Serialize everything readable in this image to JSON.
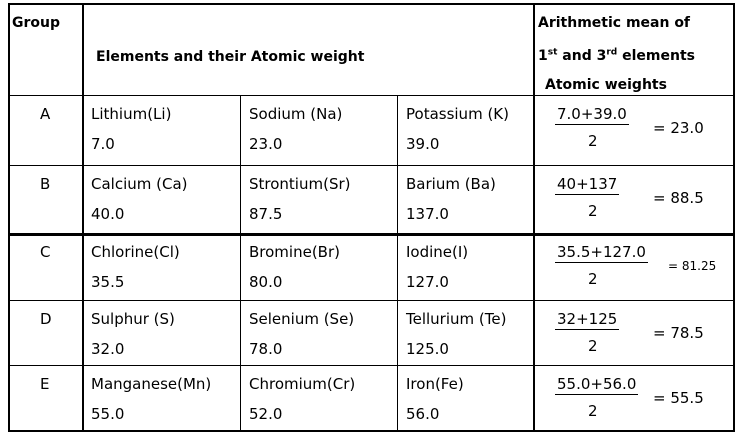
{
  "header": {
    "group": "Group",
    "elements": "Elements and their Atomic weight",
    "mean": {
      "line1": "Arithmetic mean of",
      "first": "1",
      "first_sup": "st",
      "and": "and 3",
      "third_sup": "rd",
      "elements": "elements",
      "line3": "Atomic weights"
    }
  },
  "rows": [
    {
      "group": "A",
      "elements": [
        {
          "name": "Lithium(Li)",
          "weight": "7.0"
        },
        {
          "name": "Sodium (Na)",
          "weight": "23.0"
        },
        {
          "name": "Potassium (K)",
          "weight": "39.0"
        }
      ],
      "mean": {
        "numerator": "7.0+39.0",
        "denominator": "2",
        "result": "= 23.0"
      }
    },
    {
      "group": "B",
      "elements": [
        {
          "name": "Calcium (Ca)",
          "weight": "40.0"
        },
        {
          "name": "Strontium(Sr)",
          "weight": "87.5"
        },
        {
          "name": "Barium (Ba)",
          "weight": "137.0"
        }
      ],
      "mean": {
        "numerator": "40+137",
        "denominator": "2",
        "result": "= 88.5"
      }
    },
    {
      "group": "C",
      "elements": [
        {
          "name": "Chlorine(Cl)",
          "weight": "35.5"
        },
        {
          "name": "Bromine(Br)",
          "weight": "80.0"
        },
        {
          "name": "Iodine(I)",
          "weight": "127.0"
        }
      ],
      "mean": {
        "numerator": "35.5+127.0",
        "denominator": "2",
        "result": "= 81.25"
      }
    },
    {
      "group": "D",
      "elements": [
        {
          "name": "Sulphur (S)",
          "weight": "32.0"
        },
        {
          "name": "Selenium (Se)",
          "weight": "78.0"
        },
        {
          "name": "Tellurium (Te)",
          "weight": "125.0"
        }
      ],
      "mean": {
        "numerator": "32+125",
        "denominator": "2",
        "result": "= 78.5"
      }
    },
    {
      "group": "E",
      "elements": [
        {
          "name": "Manganese(Mn)",
          "weight": "55.0"
        },
        {
          "name": "Chromium(Cr)",
          "weight": "52.0"
        },
        {
          "name": "Iron(Fe)",
          "weight": "56.0"
        }
      ],
      "mean": {
        "numerator": "55.0+56.0",
        "denominator": "2",
        "result": "= 55.5"
      }
    }
  ]
}
